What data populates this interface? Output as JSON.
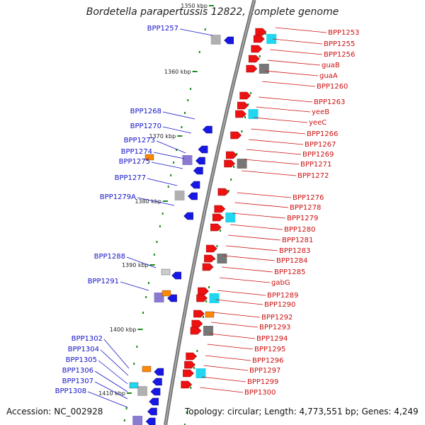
{
  "title": "Bordetella parapertussis 12822, complete genome",
  "accession_text": "Accession: NC_002928",
  "topology_text": "Topology: circular; Length: 4,773,551 bp; Genes: 4,249",
  "colors": {
    "backbone": "#8c8c8c",
    "forward": "#ee1111",
    "reverse": "#1818e6",
    "ticks": "#1a8a1a",
    "label_left": "#1414c8",
    "label_right": "#cc1010"
  },
  "kbp_markers": [
    "1350 kbp",
    "1360 kbp",
    "1370 kbp",
    "1380 kbp",
    "1390 kbp",
    "1400 kbp",
    "1410 kbp"
  ],
  "left_genes": [
    "BPP1257",
    "BPP1268",
    "BPP1270",
    "BPP1273",
    "BPP1274",
    "BPP1275",
    "BPP1277",
    "BPP1279A",
    "BPP1288",
    "BPP1291",
    "BPP1302",
    "BPP1304",
    "BPP1305",
    "BPP1306",
    "BPP1307",
    "BPP1308"
  ],
  "right_genes": [
    "BPP1253",
    "BPP1255",
    "BPP1256",
    "guaB",
    "guaA",
    "BPP1260",
    "BPP1263",
    "yeeB",
    "yeeC",
    "BPP1266",
    "BPP1267",
    "BPP1269",
    "BPP1271",
    "BPP1272",
    "BPP1276",
    "BPP1278",
    "BPP1279",
    "BPP1280",
    "BPP1281",
    "BPP1283",
    "BPP1284",
    "BPP1285",
    "gabG",
    "BPP1289",
    "BPP1290",
    "BPP1292",
    "BPP1293",
    "BPP1294",
    "BPP1295",
    "BPP1296",
    "BPP1297",
    "BPP1299",
    "BPP1300"
  ]
}
